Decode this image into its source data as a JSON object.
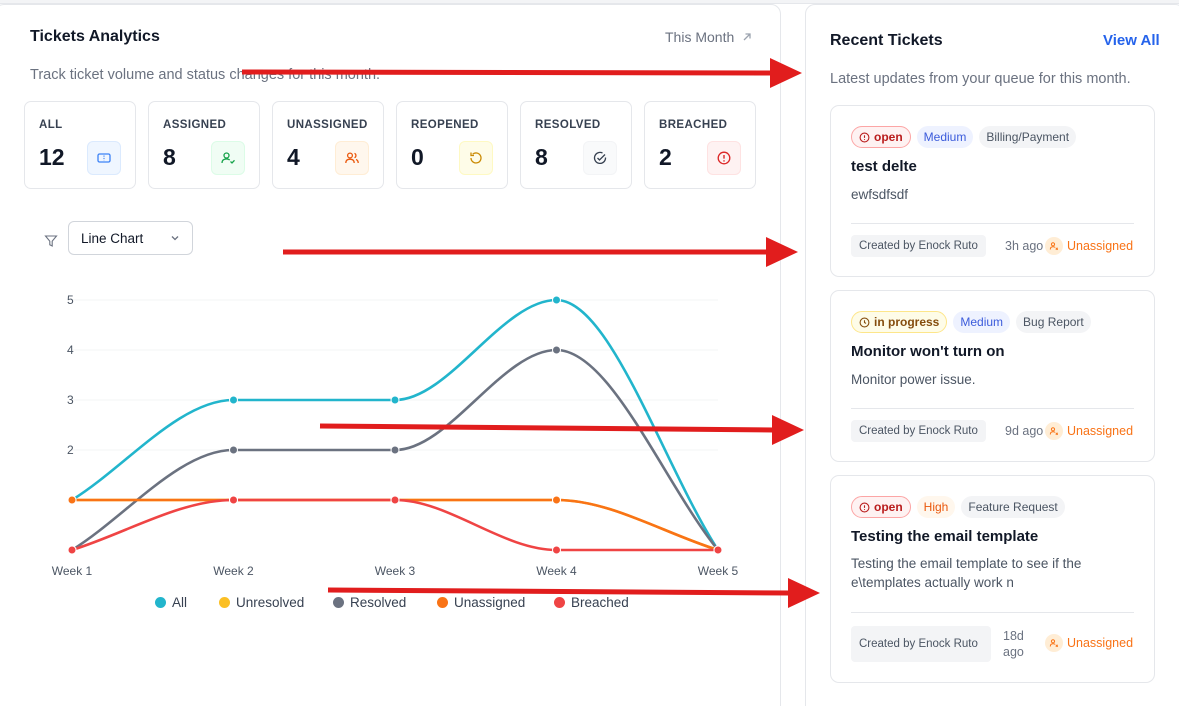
{
  "analytics": {
    "title": "Tickets Analytics",
    "period": "This Month",
    "subtitle": "Track ticket volume and status changes for this month.",
    "stats": [
      {
        "label": "ALL",
        "value": "12",
        "icon": "ticket-icon",
        "color": "#3b82f6"
      },
      {
        "label": "ASSIGNED",
        "value": "8",
        "icon": "user-check-icon",
        "color": "#16a34a"
      },
      {
        "label": "UNASSIGNED",
        "value": "4",
        "icon": "users-icon",
        "color": "#ea580c"
      },
      {
        "label": "REOPENED",
        "value": "0",
        "icon": "rotate-ccw-icon",
        "color": "#ca8a04"
      },
      {
        "label": "RESOLVED",
        "value": "8",
        "icon": "check-circle-icon",
        "color": "#374151"
      },
      {
        "label": "BREACHED",
        "value": "2",
        "icon": "alert-circle-icon",
        "color": "#dc2626"
      }
    ],
    "chart_type_select": "Line Chart"
  },
  "chart_data": {
    "type": "line",
    "categories": [
      "Week 1",
      "Week 2",
      "Week 3",
      "Week 4",
      "Week 5"
    ],
    "y_ticks": [
      "2",
      "3",
      "4",
      "5"
    ],
    "ylim": [
      0,
      5
    ],
    "grid": true,
    "legend_position": "bottom",
    "series": [
      {
        "name": "All",
        "color": "#22b5cc",
        "values": [
          1,
          3,
          3,
          5,
          0
        ]
      },
      {
        "name": "Unresolved",
        "color": "#fbbf24",
        "values": [
          1,
          1,
          1,
          1,
          0
        ]
      },
      {
        "name": "Resolved",
        "color": "#6b7280",
        "values": [
          0,
          2,
          2,
          4,
          0
        ]
      },
      {
        "name": "Unassigned",
        "color": "#f97316",
        "values": [
          1,
          1,
          1,
          1,
          0
        ]
      },
      {
        "name": "Breached",
        "color": "#ef4444",
        "values": [
          0,
          1,
          1,
          0,
          0
        ]
      }
    ]
  },
  "recent": {
    "title": "Recent Tickets",
    "view_all": "View All",
    "subtitle": "Latest updates from your queue for this month.",
    "tickets": [
      {
        "status": "open",
        "priority": "Medium",
        "category": "Billing/Payment",
        "title": "test delte",
        "desc": "ewfsdfsdf",
        "created": "Created by Enock Ruto",
        "ago": "3h ago",
        "assignee": "Unassigned"
      },
      {
        "status": "in progress",
        "priority": "Medium",
        "category": "Bug Report",
        "title": "Monitor won't turn on",
        "desc": "Monitor power issue.",
        "created": "Created by Enock Ruto",
        "ago": "9d ago",
        "assignee": "Unassigned"
      },
      {
        "status": "open",
        "priority": "High",
        "category": "Feature Request",
        "title": "Testing the email template",
        "desc": "Testing the email template to see if the e\\templates actually work n",
        "created": "Created by Enock Ruto",
        "ago": "18d ago",
        "assignee": "Unassigned"
      }
    ]
  }
}
